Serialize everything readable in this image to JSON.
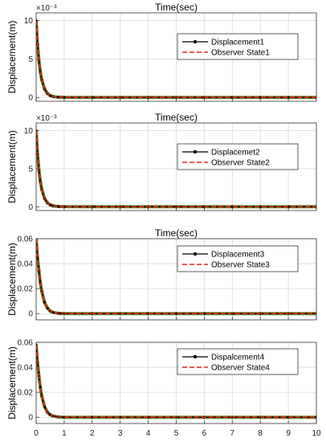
{
  "chart_data": [
    {
      "type": "line",
      "title": "Time(sec)",
      "xlabel": "",
      "ylabel": "Displacement(m)",
      "xlim": [
        0,
        10
      ],
      "ylim": [
        -0.0005,
        0.011
      ],
      "yticks": [
        0,
        5,
        10
      ],
      "ytick_labels": [
        "0",
        "5",
        "10"
      ],
      "multiplier": "×10⁻³",
      "xticks": [
        0,
        1,
        2,
        3,
        4,
        5,
        6,
        7,
        8,
        9,
        10
      ],
      "xtick_labels": [],
      "grid": true,
      "legend_position": "top-right",
      "x": [
        0,
        0.05,
        0.1,
        0.15,
        0.2,
        0.3,
        0.4,
        0.5,
        0.6,
        0.8,
        1,
        2,
        3,
        4,
        5,
        6,
        7,
        8,
        9,
        10
      ],
      "series": [
        {
          "name": "Displacement1",
          "color": "#000000",
          "style": "solid-marker",
          "values": [
            0.01,
            0.0069,
            0.0048,
            0.0033,
            0.0023,
            0.0011,
            0.00052,
            0.00025,
            0.00012,
            3e-05,
            1e-05,
            0,
            0,
            0,
            0,
            0,
            0,
            0,
            0,
            0
          ]
        },
        {
          "name": "Observer State1",
          "color": "#e0201b",
          "style": "dashed",
          "values": [
            0.01,
            0.0069,
            0.0048,
            0.0033,
            0.0023,
            0.0011,
            0.00052,
            0.00025,
            0.00012,
            3e-05,
            1e-05,
            0,
            0,
            0,
            0,
            0,
            0,
            0,
            0,
            0
          ]
        }
      ]
    },
    {
      "type": "line",
      "title": "Time(sec)",
      "xlabel": "",
      "ylabel": "Displacement(m)",
      "xlim": [
        0,
        10
      ],
      "ylim": [
        -0.0005,
        0.011
      ],
      "yticks": [
        0,
        5,
        10
      ],
      "ytick_labels": [
        "0",
        "5",
        "10"
      ],
      "multiplier": "×10⁻³",
      "xticks": [
        0,
        1,
        2,
        3,
        4,
        5,
        6,
        7,
        8,
        9,
        10
      ],
      "xtick_labels": [],
      "grid": true,
      "legend_position": "top-right",
      "x": [
        0,
        0.05,
        0.1,
        0.15,
        0.2,
        0.3,
        0.4,
        0.5,
        0.6,
        0.8,
        1,
        2,
        3,
        4,
        5,
        6,
        7,
        8,
        9,
        10
      ],
      "series": [
        {
          "name": "Displacemet2",
          "color": "#000000",
          "style": "solid-marker",
          "values": [
            0.01,
            0.0069,
            0.0048,
            0.0033,
            0.0023,
            0.0011,
            0.00052,
            0.00025,
            0.00012,
            3e-05,
            1e-05,
            0,
            0,
            0,
            0,
            0,
            0,
            0,
            0,
            0
          ]
        },
        {
          "name": "Observer State2",
          "color": "#e0201b",
          "style": "dashed",
          "values": [
            0.01,
            0.0069,
            0.0048,
            0.0033,
            0.0023,
            0.0011,
            0.00052,
            0.00025,
            0.00012,
            3e-05,
            1e-05,
            0,
            0,
            0,
            0,
            0,
            0,
            0,
            0,
            0
          ]
        }
      ]
    },
    {
      "type": "line",
      "title": "Time(sec)",
      "xlabel": "",
      "ylabel": "Displacement(m)",
      "xlim": [
        0,
        10
      ],
      "ylim": [
        -0.005,
        0.06
      ],
      "yticks": [
        0,
        0.02,
        0.04,
        0.06
      ],
      "ytick_labels": [
        "0",
        "0.02",
        "0.04",
        "0.06"
      ],
      "multiplier": "",
      "xticks": [
        0,
        1,
        2,
        3,
        4,
        5,
        6,
        7,
        8,
        9,
        10
      ],
      "xtick_labels": [],
      "grid": true,
      "legend_position": "top-right",
      "x": [
        0,
        0.05,
        0.1,
        0.15,
        0.2,
        0.3,
        0.4,
        0.5,
        0.6,
        0.8,
        1,
        2,
        3,
        4,
        5,
        6,
        7,
        8,
        9,
        10
      ],
      "series": [
        {
          "name": "Displacement3",
          "color": "#000000",
          "style": "solid-marker",
          "values": [
            0.06,
            0.045,
            0.034,
            0.025,
            0.018,
            0.009,
            0.0045,
            0.002,
            0.001,
            0.0002,
            0,
            0,
            0,
            0,
            0,
            0,
            0,
            0,
            0,
            0
          ]
        },
        {
          "name": "Observer State3",
          "color": "#e0201b",
          "style": "dashed",
          "values": [
            0.06,
            0.045,
            0.034,
            0.025,
            0.018,
            0.009,
            0.0045,
            0.002,
            0.001,
            0.0002,
            0,
            0,
            0,
            0,
            0,
            0,
            0,
            0,
            0,
            0
          ]
        }
      ]
    },
    {
      "type": "line",
      "title": "",
      "xlabel": "",
      "ylabel": "Displacement(m)",
      "xlim": [
        0,
        10
      ],
      "ylim": [
        -0.005,
        0.06
      ],
      "yticks": [
        0,
        0.02,
        0.04,
        0.06
      ],
      "ytick_labels": [
        "0",
        "0.02",
        "0.04",
        "0.06"
      ],
      "multiplier": "",
      "xticks": [
        0,
        1,
        2,
        3,
        4,
        5,
        6,
        7,
        8,
        9,
        10
      ],
      "xtick_labels": [
        "0",
        "1",
        "2",
        "3",
        "4",
        "5",
        "6",
        "7",
        "8",
        "9",
        "10"
      ],
      "grid": true,
      "legend_position": "top-right",
      "x": [
        0,
        0.05,
        0.1,
        0.15,
        0.2,
        0.3,
        0.4,
        0.5,
        0.6,
        0.8,
        1,
        2,
        3,
        4,
        5,
        6,
        7,
        8,
        9,
        10
      ],
      "series": [
        {
          "name": "Dispalcement4",
          "color": "#000000",
          "style": "solid-marker",
          "values": [
            0.058,
            0.044,
            0.033,
            0.024,
            0.017,
            0.0085,
            0.0042,
            0.002,
            0.001,
            0.0002,
            0,
            0,
            0,
            0,
            0,
            0,
            0,
            0,
            0,
            0
          ]
        },
        {
          "name": "Observer State4",
          "color": "#e0201b",
          "style": "dashed",
          "values": [
            0.058,
            0.044,
            0.033,
            0.024,
            0.017,
            0.0085,
            0.0042,
            0.002,
            0.001,
            0.0002,
            0,
            0,
            0,
            0,
            0,
            0,
            0,
            0,
            0,
            0
          ]
        }
      ]
    }
  ]
}
